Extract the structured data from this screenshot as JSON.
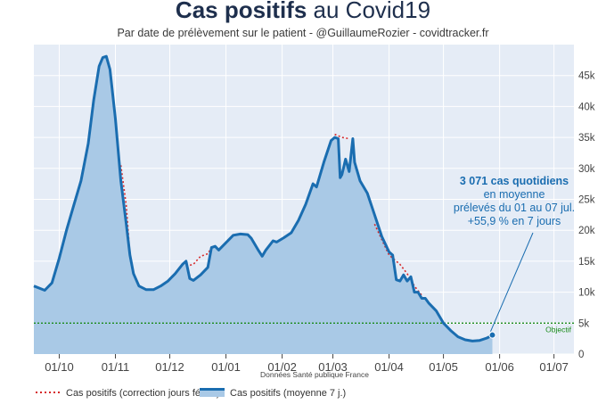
{
  "chart_data": {
    "type": "area",
    "title_bold": "Cas positifs",
    "title_rest": " au Covid19",
    "subtitle": "Par date de prélèvement sur le patient - @GuillaumeRozier - covidtracker.fr",
    "source": "Données Santé publique France",
    "x_start": "2020-09-17",
    "x_end": "2021-07-12",
    "x_ticks": [
      "01/10",
      "01/11",
      "01/12",
      "01/01",
      "01/02",
      "01/03",
      "01/04",
      "01/05",
      "01/06",
      "01/07"
    ],
    "y_ticks": [
      "0",
      "5k",
      "10k",
      "15k",
      "20k",
      "25k",
      "30k",
      "35k",
      "40k",
      "45k"
    ],
    "ylim": [
      0,
      50000
    ],
    "objective": {
      "value": 5000,
      "label": "Objectif",
      "color": "#1a8a1a"
    },
    "series": [
      {
        "name": "Cas positifs (moyenne 7 j.)",
        "color": "#1a6db0",
        "fill": "#a9c9e6",
        "points": [
          [
            0,
            11000
          ],
          [
            6,
            10300
          ],
          [
            10,
            11500
          ],
          [
            14,
            15500
          ],
          [
            18,
            20000
          ],
          [
            22,
            24000
          ],
          [
            26,
            28000
          ],
          [
            30,
            34000
          ],
          [
            33,
            41000
          ],
          [
            36,
            46500
          ],
          [
            38,
            47900
          ],
          [
            40,
            48100
          ],
          [
            42,
            46000
          ],
          [
            45,
            38000
          ],
          [
            48,
            28000
          ],
          [
            51,
            21000
          ],
          [
            53,
            16000
          ],
          [
            55,
            13000
          ],
          [
            58,
            11000
          ],
          [
            62,
            10400
          ],
          [
            66,
            10400
          ],
          [
            70,
            11000
          ],
          [
            74,
            11800
          ],
          [
            78,
            13000
          ],
          [
            82,
            14500
          ],
          [
            84,
            15000
          ],
          [
            86,
            12200
          ],
          [
            88,
            11900
          ],
          [
            92,
            12800
          ],
          [
            96,
            14000
          ],
          [
            98,
            17200
          ],
          [
            100,
            17400
          ],
          [
            102,
            16800
          ],
          [
            106,
            18000
          ],
          [
            110,
            19200
          ],
          [
            114,
            19400
          ],
          [
            118,
            19300
          ],
          [
            120,
            18700
          ],
          [
            124,
            16700
          ],
          [
            126,
            15800
          ],
          [
            128,
            16800
          ],
          [
            132,
            18300
          ],
          [
            134,
            18100
          ],
          [
            138,
            18800
          ],
          [
            142,
            19600
          ],
          [
            146,
            21600
          ],
          [
            150,
            24200
          ],
          [
            154,
            27500
          ],
          [
            156,
            27000
          ],
          [
            160,
            31000
          ],
          [
            164,
            34500
          ],
          [
            166,
            35000
          ],
          [
            168,
            34800
          ],
          [
            169,
            28500
          ],
          [
            170,
            29000
          ],
          [
            172,
            31500
          ],
          [
            174,
            29500
          ],
          [
            176,
            34800
          ],
          [
            177,
            31000
          ],
          [
            180,
            28000
          ],
          [
            184,
            26000
          ],
          [
            188,
            22500
          ],
          [
            192,
            19000
          ],
          [
            196,
            16500
          ],
          [
            198,
            16000
          ],
          [
            200,
            12000
          ],
          [
            202,
            11800
          ],
          [
            204,
            12800
          ],
          [
            206,
            11800
          ],
          [
            208,
            12500
          ],
          [
            210,
            10000
          ],
          [
            212,
            10000
          ],
          [
            214,
            9000
          ],
          [
            216,
            9000
          ],
          [
            218,
            8200
          ],
          [
            222,
            7000
          ],
          [
            226,
            5000
          ],
          [
            230,
            3800
          ],
          [
            234,
            2800
          ],
          [
            238,
            2300
          ],
          [
            242,
            2100
          ],
          [
            246,
            2200
          ],
          [
            250,
            2600
          ],
          [
            252,
            2900
          ],
          [
            253,
            3071
          ]
        ]
      },
      {
        "name": "Cas positifs (correction jours fériés)",
        "color": "#d62728",
        "segments": [
          [
            [
              48,
              30500
            ],
            [
              51,
              24000
            ],
            [
              53,
              16000
            ]
          ],
          [
            [
              84,
              14200
            ],
            [
              88,
              14500
            ],
            [
              92,
              15800
            ],
            [
              96,
              16200
            ],
            [
              98,
              17200
            ]
          ],
          [
            [
              166,
              35500
            ],
            [
              170,
              35000
            ],
            [
              174,
              34800
            ]
          ],
          [
            [
              188,
              21000
            ],
            [
              192,
              18500
            ],
            [
              196,
              16000
            ],
            [
              202,
              14500
            ],
            [
              206,
              13000
            ],
            [
              210,
              11000
            ],
            [
              214,
              9500
            ]
          ]
        ]
      }
    ],
    "annotation": {
      "line1": "3 071 cas quotidiens",
      "line2": "en moyenne",
      "line3": "prélevés du 01 au 07 jul.",
      "line4": "+55,9 % en 7 jours",
      "value": 3071
    }
  }
}
